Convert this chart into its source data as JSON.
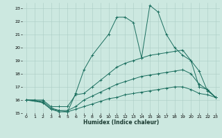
{
  "xlabel": "Humidex (Indice chaleur)",
  "bg_color": "#cce8e0",
  "grid_color": "#aaccc4",
  "line_color": "#1a6e5e",
  "xlim": [
    -0.5,
    23.5
  ],
  "ylim": [
    15,
    23.4
  ],
  "xticks": [
    0,
    1,
    2,
    3,
    4,
    5,
    6,
    7,
    8,
    9,
    10,
    11,
    12,
    13,
    14,
    15,
    16,
    17,
    18,
    19,
    20,
    21,
    22,
    23
  ],
  "yticks": [
    15,
    16,
    17,
    18,
    19,
    20,
    21,
    22,
    23
  ],
  "lines": [
    {
      "x": [
        0,
        1,
        2,
        3,
        4,
        5,
        6,
        7,
        8,
        10,
        11,
        12,
        13,
        14,
        15,
        16,
        17,
        18,
        19,
        20,
        21,
        22,
        23
      ],
      "y": [
        16.0,
        16.0,
        15.8,
        15.3,
        15.2,
        15.1,
        16.5,
        18.3,
        19.4,
        21.0,
        22.3,
        22.3,
        21.9,
        19.2,
        23.2,
        22.7,
        21.0,
        20.0,
        19.4,
        19.0,
        18.2,
        16.7,
        16.2
      ]
    },
    {
      "x": [
        0,
        2,
        3,
        4,
        5,
        6,
        7,
        8,
        9,
        10,
        11,
        12,
        13,
        14,
        15,
        16,
        17,
        18,
        19,
        20,
        21,
        22,
        23
      ],
      "y": [
        16.0,
        16.0,
        15.5,
        15.5,
        15.5,
        16.4,
        16.5,
        17.0,
        17.5,
        18.0,
        18.5,
        18.8,
        19.0,
        19.2,
        19.4,
        19.5,
        19.6,
        19.7,
        19.8,
        19.0,
        17.0,
        16.8,
        16.2
      ]
    },
    {
      "x": [
        0,
        2,
        3,
        4,
        5,
        6,
        7,
        8,
        9,
        10,
        11,
        12,
        13,
        14,
        15,
        16,
        17,
        18,
        19,
        20,
        21,
        22,
        23
      ],
      "y": [
        16.0,
        15.9,
        15.4,
        15.2,
        15.2,
        15.5,
        16.0,
        16.3,
        16.6,
        16.9,
        17.2,
        17.4,
        17.6,
        17.8,
        17.9,
        18.0,
        18.1,
        18.2,
        18.3,
        18.0,
        17.2,
        16.8,
        16.2
      ]
    },
    {
      "x": [
        0,
        2,
        3,
        4,
        5,
        6,
        7,
        8,
        9,
        10,
        11,
        12,
        13,
        14,
        15,
        16,
        17,
        18,
        19,
        20,
        21,
        22,
        23
      ],
      "y": [
        16.0,
        15.8,
        15.3,
        15.1,
        15.1,
        15.3,
        15.5,
        15.7,
        15.9,
        16.1,
        16.2,
        16.4,
        16.5,
        16.6,
        16.7,
        16.8,
        16.9,
        17.0,
        17.0,
        16.8,
        16.5,
        16.4,
        16.2
      ]
    }
  ]
}
